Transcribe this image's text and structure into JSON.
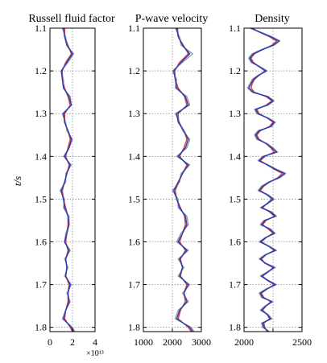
{
  "chart_data": [
    {
      "type": "line",
      "title": "Russell fluid factor",
      "ylabel": "t/s",
      "xlabel": "",
      "x_exponent_label": "×10¹³",
      "xlim": [
        0,
        4
      ],
      "ylim": [
        1.1,
        1.81
      ],
      "y_reversed": true,
      "x_ticks": [
        0,
        2,
        4
      ],
      "x_tick_labels": [
        "0",
        "2",
        "4"
      ],
      "y_ticks": [
        1.1,
        1.2,
        1.3,
        1.4,
        1.5,
        1.6,
        1.7,
        1.8
      ],
      "y_tick_labels": [
        "1.1",
        "1.2",
        "1.3",
        "1.4",
        "1.5",
        "1.6",
        "1.7",
        "1.8"
      ],
      "grid": "dotted",
      "series": [
        {
          "color": "#1f3fbf",
          "t": [
            1.1,
            1.12,
            1.14,
            1.16,
            1.18,
            1.2,
            1.22,
            1.24,
            1.26,
            1.28,
            1.3,
            1.32,
            1.34,
            1.36,
            1.38,
            1.4,
            1.42,
            1.44,
            1.46,
            1.48,
            1.5,
            1.52,
            1.54,
            1.56,
            1.58,
            1.6,
            1.62,
            1.64,
            1.66,
            1.68,
            1.7,
            1.72,
            1.74,
            1.76,
            1.78,
            1.8,
            1.81
          ],
          "x": [
            1.2,
            1.3,
            1.5,
            2.0,
            1.5,
            1.0,
            1.1,
            1.2,
            1.7,
            1.9,
            1.2,
            1.3,
            1.6,
            1.9,
            1.7,
            1.3,
            1.8,
            1.5,
            1.3,
            1.0,
            1.2,
            1.3,
            1.6,
            1.7,
            1.5,
            1.3,
            1.7,
            1.4,
            1.5,
            1.4,
            1.8,
            1.6,
            1.7,
            1.4,
            1.2,
            1.9,
            2.1
          ]
        },
        {
          "color": "#d63a3a",
          "t": [
            1.1,
            1.12,
            1.14,
            1.16,
            1.18,
            1.2,
            1.22,
            1.24,
            1.26,
            1.28,
            1.3,
            1.32,
            1.34,
            1.36,
            1.38,
            1.4,
            1.42,
            1.44,
            1.46,
            1.48,
            1.5,
            1.52,
            1.54,
            1.56,
            1.58,
            1.6,
            1.62,
            1.64,
            1.66,
            1.68,
            1.7,
            1.72,
            1.74,
            1.76,
            1.78,
            1.8,
            1.81
          ],
          "x": [
            1.3,
            1.3,
            1.6,
            1.9,
            1.4,
            1.1,
            1.1,
            1.3,
            1.6,
            1.8,
            1.3,
            1.3,
            1.6,
            1.8,
            1.6,
            1.4,
            1.7,
            1.5,
            1.3,
            1.1,
            1.2,
            1.4,
            1.6,
            1.6,
            1.5,
            1.4,
            1.6,
            1.4,
            1.5,
            1.4,
            1.7,
            1.6,
            1.6,
            1.4,
            1.3,
            1.8,
            2.0
          ]
        },
        {
          "color": "#9a9a9a",
          "t": [
            1.1,
            1.12,
            1.14,
            1.16,
            1.18,
            1.2,
            1.22,
            1.24,
            1.26,
            1.28,
            1.3,
            1.32,
            1.34,
            1.36,
            1.38,
            1.4,
            1.42,
            1.44,
            1.46,
            1.48,
            1.5,
            1.52,
            1.54,
            1.56,
            1.58,
            1.6,
            1.62,
            1.64,
            1.66,
            1.68,
            1.7,
            1.72,
            1.74,
            1.76,
            1.78,
            1.8,
            1.81
          ],
          "x": [
            1.1,
            1.4,
            1.5,
            2.1,
            1.6,
            1.0,
            1.2,
            1.2,
            1.8,
            1.9,
            1.1,
            1.4,
            1.5,
            2.0,
            1.7,
            1.2,
            1.9,
            1.4,
            1.4,
            0.9,
            1.3,
            1.2,
            1.7,
            1.7,
            1.4,
            1.3,
            1.8,
            1.3,
            1.6,
            1.3,
            1.9,
            1.5,
            1.8,
            1.4,
            1.1,
            2.0,
            2.2
          ]
        }
      ]
    },
    {
      "type": "line",
      "title": "P-wave velocity",
      "xlabel": "",
      "ylabel": "",
      "xlim": [
        1000,
        3000
      ],
      "ylim": [
        1.1,
        1.81
      ],
      "y_reversed": true,
      "x_ticks": [
        1000,
        2000,
        3000
      ],
      "x_tick_labels": [
        "1000",
        "2000",
        "3000"
      ],
      "y_ticks": [
        1.1,
        1.2,
        1.3,
        1.4,
        1.5,
        1.6,
        1.7,
        1.8
      ],
      "y_tick_labels": [
        "1.1",
        "1.2",
        "1.3",
        "1.4",
        "1.5",
        "1.6",
        "1.7",
        "1.8"
      ],
      "grid": "dotted",
      "series": [
        {
          "color": "#1f3fbf",
          "t": [
            1.1,
            1.12,
            1.14,
            1.16,
            1.18,
            1.2,
            1.22,
            1.24,
            1.26,
            1.28,
            1.3,
            1.32,
            1.34,
            1.36,
            1.38,
            1.4,
            1.42,
            1.44,
            1.46,
            1.48,
            1.5,
            1.52,
            1.54,
            1.56,
            1.58,
            1.6,
            1.62,
            1.64,
            1.66,
            1.68,
            1.7,
            1.72,
            1.74,
            1.76,
            1.78,
            1.8,
            1.81
          ],
          "x": [
            2150,
            2200,
            2350,
            2600,
            2300,
            2050,
            2100,
            2150,
            2450,
            2550,
            2150,
            2200,
            2400,
            2550,
            2450,
            2200,
            2550,
            2350,
            2200,
            2050,
            2150,
            2250,
            2450,
            2500,
            2350,
            2200,
            2500,
            2250,
            2350,
            2250,
            2550,
            2400,
            2500,
            2250,
            2150,
            2600,
            2700
          ]
        },
        {
          "color": "#d63a3a",
          "t": [
            1.1,
            1.12,
            1.14,
            1.16,
            1.18,
            1.2,
            1.22,
            1.24,
            1.26,
            1.28,
            1.3,
            1.32,
            1.34,
            1.36,
            1.38,
            1.4,
            1.42,
            1.44,
            1.46,
            1.48,
            1.5,
            1.52,
            1.54,
            1.56,
            1.58,
            1.6,
            1.62,
            1.64,
            1.66,
            1.68,
            1.7,
            1.72,
            1.74,
            1.76,
            1.78,
            1.8,
            1.81
          ],
          "x": [
            2180,
            2200,
            2380,
            2550,
            2250,
            2080,
            2100,
            2200,
            2420,
            2500,
            2200,
            2220,
            2400,
            2500,
            2400,
            2250,
            2500,
            2350,
            2220,
            2100,
            2150,
            2280,
            2420,
            2450,
            2350,
            2250,
            2450,
            2280,
            2350,
            2280,
            2500,
            2400,
            2450,
            2280,
            2200,
            2550,
            2650
          ]
        },
        {
          "color": "#9a9a9a",
          "t": [
            1.1,
            1.12,
            1.14,
            1.16,
            1.18,
            1.2,
            1.22,
            1.24,
            1.26,
            1.28,
            1.3,
            1.32,
            1.34,
            1.36,
            1.38,
            1.4,
            1.42,
            1.44,
            1.46,
            1.48,
            1.5,
            1.52,
            1.54,
            1.56,
            1.58,
            1.6,
            1.62,
            1.64,
            1.66,
            1.68,
            1.7,
            1.72,
            1.74,
            1.76,
            1.78,
            1.8,
            1.81
          ],
          "x": [
            2100,
            2250,
            2300,
            2700,
            2350,
            2000,
            2150,
            2100,
            2500,
            2600,
            2100,
            2250,
            2350,
            2600,
            2500,
            2150,
            2600,
            2300,
            2250,
            2000,
            2200,
            2200,
            2500,
            2550,
            2300,
            2150,
            2550,
            2200,
            2400,
            2200,
            2600,
            2350,
            2550,
            2200,
            2100,
            2650,
            2750
          ]
        }
      ]
    },
    {
      "type": "line",
      "title": "Density",
      "xlabel": "",
      "ylabel": "",
      "xlim": [
        2000,
        2500
      ],
      "ylim": [
        1.1,
        1.81
      ],
      "y_reversed": true,
      "x_ticks": [
        2000,
        2250,
        2500
      ],
      "x_tick_labels": [
        "2000",
        "",
        "2500"
      ],
      "y_ticks": [
        1.1,
        1.2,
        1.3,
        1.4,
        1.5,
        1.6,
        1.7,
        1.8
      ],
      "y_tick_labels": [
        "1.1",
        "1.2",
        "1.3",
        "1.4",
        "1.5",
        "1.6",
        "1.7",
        "1.8"
      ],
      "grid": "dotted",
      "series": [
        {
          "color": "#1f3fbf",
          "t": [
            1.1,
            1.11,
            1.12,
            1.13,
            1.14,
            1.15,
            1.16,
            1.17,
            1.18,
            1.19,
            1.2,
            1.21,
            1.22,
            1.23,
            1.24,
            1.25,
            1.26,
            1.27,
            1.28,
            1.29,
            1.3,
            1.31,
            1.32,
            1.33,
            1.34,
            1.35,
            1.36,
            1.37,
            1.38,
            1.39,
            1.4,
            1.41,
            1.42,
            1.43,
            1.44,
            1.45,
            1.46,
            1.47,
            1.48,
            1.49,
            1.5,
            1.51,
            1.52,
            1.53,
            1.54,
            1.55,
            1.56,
            1.57,
            1.58,
            1.59,
            1.6,
            1.61,
            1.62,
            1.63,
            1.64,
            1.65,
            1.66,
            1.67,
            1.68,
            1.69,
            1.7,
            1.71,
            1.72,
            1.73,
            1.74,
            1.75,
            1.76,
            1.77,
            1.78,
            1.79,
            1.8,
            1.81
          ],
          "x": [
            2060,
            2140,
            2230,
            2300,
            2250,
            2160,
            2080,
            2050,
            2070,
            2130,
            2190,
            2130,
            2080,
            2060,
            2040,
            2080,
            2200,
            2250,
            2200,
            2100,
            2120,
            2200,
            2260,
            2230,
            2130,
            2100,
            2120,
            2190,
            2240,
            2280,
            2170,
            2130,
            2200,
            2270,
            2350,
            2300,
            2220,
            2160,
            2130,
            2200,
            2250,
            2200,
            2150,
            2230,
            2270,
            2180,
            2150,
            2220,
            2260,
            2190,
            2140,
            2210,
            2270,
            2190,
            2140,
            2180,
            2260,
            2210,
            2150,
            2200,
            2270,
            2200,
            2140,
            2160,
            2240,
            2190,
            2150,
            2200,
            2230,
            2160,
            2170,
            2210
          ]
        },
        {
          "color": "#d63a3a",
          "t": [
            1.1,
            1.11,
            1.12,
            1.13,
            1.14,
            1.15,
            1.16,
            1.17,
            1.18,
            1.19,
            1.2,
            1.21,
            1.22,
            1.23,
            1.24,
            1.25,
            1.26,
            1.27,
            1.28,
            1.29,
            1.3,
            1.31,
            1.32,
            1.33,
            1.34,
            1.35,
            1.36,
            1.37,
            1.38,
            1.39,
            1.4,
            1.41,
            1.42,
            1.43,
            1.44,
            1.45,
            1.46,
            1.47,
            1.48,
            1.49,
            1.5,
            1.51,
            1.52,
            1.53,
            1.54,
            1.55,
            1.56,
            1.57,
            1.58,
            1.59,
            1.6,
            1.61,
            1.62,
            1.63,
            1.64,
            1.65,
            1.66,
            1.67,
            1.68,
            1.69,
            1.7,
            1.71,
            1.72,
            1.73,
            1.74,
            1.75,
            1.76,
            1.77,
            1.78,
            1.79,
            1.8,
            1.81
          ],
          "x": [
            2070,
            2140,
            2220,
            2280,
            2240,
            2160,
            2090,
            2060,
            2080,
            2130,
            2180,
            2130,
            2090,
            2070,
            2060,
            2090,
            2190,
            2240,
            2190,
            2110,
            2130,
            2200,
            2250,
            2220,
            2140,
            2110,
            2130,
            2190,
            2230,
            2260,
            2180,
            2140,
            2200,
            2260,
            2330,
            2290,
            2220,
            2170,
            2140,
            2200,
            2240,
            2200,
            2160,
            2220,
            2260,
            2190,
            2160,
            2210,
            2250,
            2190,
            2150,
            2210,
            2260,
            2190,
            2150,
            2180,
            2250,
            2210,
            2160,
            2200,
            2260,
            2200,
            2150,
            2170,
            2230,
            2190,
            2160,
            2200,
            2220,
            2170,
            2180,
            2200
          ]
        },
        {
          "color": "#9a9a9a",
          "t": [
            1.1,
            1.11,
            1.12,
            1.13,
            1.14,
            1.15,
            1.16,
            1.17,
            1.18,
            1.19,
            1.2,
            1.21,
            1.22,
            1.23,
            1.24,
            1.25,
            1.26,
            1.27,
            1.28,
            1.29,
            1.3,
            1.31,
            1.32,
            1.33,
            1.34,
            1.35,
            1.36,
            1.37,
            1.38,
            1.39,
            1.4,
            1.41,
            1.42,
            1.43,
            1.44,
            1.45,
            1.46,
            1.47,
            1.48,
            1.49,
            1.5,
            1.51,
            1.52,
            1.53,
            1.54,
            1.55,
            1.56,
            1.57,
            1.58,
            1.59,
            1.6,
            1.61,
            1.62,
            1.63,
            1.64,
            1.65,
            1.66,
            1.67,
            1.68,
            1.69,
            1.7,
            1.71,
            1.72,
            1.73,
            1.74,
            1.75,
            1.76,
            1.77,
            1.78,
            1.79,
            1.8,
            1.81
          ],
          "x": [
            2050,
            2150,
            2240,
            2310,
            2260,
            2150,
            2070,
            2040,
            2060,
            2140,
            2200,
            2120,
            2070,
            2050,
            2030,
            2070,
            2210,
            2260,
            2210,
            2090,
            2110,
            2210,
            2270,
            2240,
            2120,
            2090,
            2110,
            2200,
            2250,
            2290,
            2160,
            2120,
            2210,
            2280,
            2360,
            2310,
            2210,
            2150,
            2120,
            2210,
            2260,
            2210,
            2140,
            2240,
            2280,
            2170,
            2140,
            2230,
            2270,
            2180,
            2130,
            2220,
            2280,
            2180,
            2130,
            2190,
            2270,
            2200,
            2140,
            2210,
            2280,
            2190,
            2130,
            2150,
            2250,
            2180,
            2140,
            2210,
            2240,
            2150,
            2160,
            2220
          ]
        }
      ]
    }
  ]
}
